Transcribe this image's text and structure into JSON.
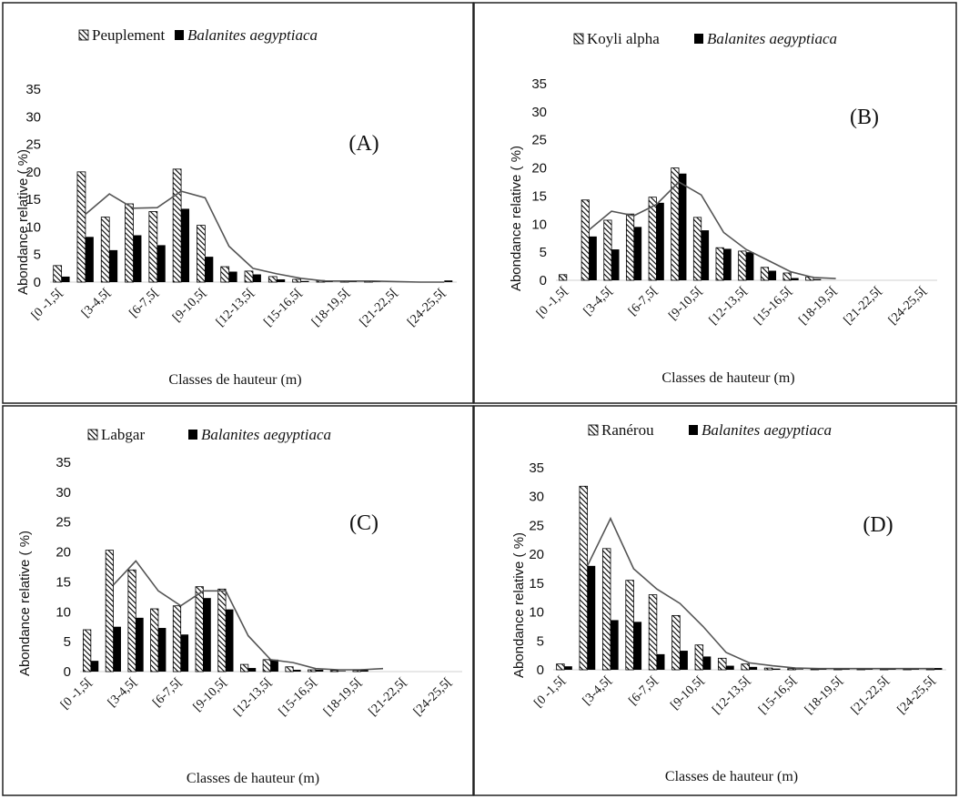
{
  "figure": {
    "colors": {
      "bar_black": "#000000",
      "hatch": "#000000",
      "line": "#555555",
      "axis": "#d9d9d9",
      "border": "#222222"
    }
  },
  "chart_data": [
    {
      "type": "bar",
      "panel_label": "(A)",
      "legend": {
        "placement": "top",
        "entries": [
          "Peuplement",
          "Balanites aegyptiaca"
        ],
        "italic": [
          false,
          true
        ]
      },
      "xlabel": "Classes de hauteur (m)",
      "ylabel": "Abondance relative ( %)",
      "ylim": [
        0,
        35
      ],
      "yticks": [
        0,
        5,
        10,
        15,
        20,
        25,
        30,
        35
      ],
      "categories": [
        "[0 -1,5[",
        "[1,5-3[",
        "[3-4,5[",
        "[4,5-6[",
        "[6-7,5[",
        "[7,5-9[",
        "[9-10,5[",
        "[10,5-12[",
        "[12-13,5[",
        "[13,5-15[",
        "[15-16,5[",
        "[16,5-18[",
        "[18-19,5[",
        "[19,5-21[",
        "[21-22,5[",
        "[22,5-24[",
        "[24-25,5["
      ],
      "tick_labels": [
        "[0 -1,5[",
        "",
        "[3-4,5[",
        "",
        "[6-7,5[",
        "",
        "[9-10,5[",
        "",
        "[12-13,5[",
        "",
        "[15-16,5[",
        "",
        "[18-19,5[",
        "",
        "[21-22,5[",
        "",
        "[24-25,5["
      ],
      "series": [
        {
          "name": "Peuplement",
          "style": "hatched",
          "values": [
            3,
            20,
            11.8,
            14.2,
            12.8,
            20.5,
            10.3,
            2.8,
            2,
            1,
            0.5,
            0.3,
            0.2,
            0.2,
            0,
            0,
            0
          ]
        },
        {
          "name": "Balanites aegyptiaca",
          "style": "solid",
          "values": [
            1,
            8.2,
            5.8,
            8.5,
            6.7,
            13.3,
            4.6,
            1.9,
            1.4,
            0.5,
            0.2,
            0.1,
            0.2,
            0.2,
            0,
            0,
            0.3
          ]
        }
      ],
      "trend": {
        "values": [
          null,
          12.3,
          16,
          13.4,
          13.5,
          16.5,
          15.3,
          6.5,
          2.5,
          1.5,
          0.7,
          0.2,
          0.2,
          0.2,
          0.1,
          0,
          0
        ]
      },
      "grid": false
    },
    {
      "type": "bar",
      "panel_label": "(B)",
      "legend": {
        "placement": "top-right",
        "entries": [
          "Koyli alpha",
          "Balanites aegyptiaca"
        ],
        "italic": [
          false,
          true
        ]
      },
      "xlabel": "Classes de hauteur (m)",
      "ylabel": "Abondance relative ( %)",
      "ylim": [
        0,
        35
      ],
      "yticks": [
        0,
        5,
        10,
        15,
        20,
        25,
        30,
        35
      ],
      "categories": [
        "[0 -1,5[",
        "[1,5-3[",
        "[3-4,5[",
        "[4,5-6[",
        "[6-7,5[",
        "[7,5-9[",
        "[9-10,5[",
        "[10,5-12[",
        "[12-13,5[",
        "[13,5-15[",
        "[15-16,5[",
        "[16,5-18[",
        "[18-19,5[",
        "[19,5-21[",
        "[21-22,5[",
        "[22,5-24[",
        "[24-25,5["
      ],
      "tick_labels": [
        "[0 -1,5[",
        "",
        "[3-4,5[",
        "",
        "[6-7,5[",
        "",
        "[9-10,5[",
        "",
        "[12-13,5[",
        "",
        "[15-16,5[",
        "",
        "[18-19,5[",
        "",
        "[21-22,5[",
        "",
        "[24-25,5["
      ],
      "series": [
        {
          "name": "Koyli alpha",
          "style": "hatched",
          "values": [
            1,
            14.3,
            10.7,
            11.8,
            14.8,
            20,
            11.2,
            5.8,
            5.2,
            2.3,
            1.3,
            0.6,
            0,
            0,
            0,
            0,
            0
          ]
        },
        {
          "name": "Balanites aegyptiaca",
          "style": "solid",
          "values": [
            0,
            7.8,
            5.5,
            9.5,
            13.8,
            19,
            8.9,
            5.6,
            5,
            1.7,
            0.4,
            0.2,
            0,
            0,
            0,
            0,
            0
          ]
        }
      ],
      "trend": {
        "values": [
          null,
          9,
          12.3,
          11.5,
          13.5,
          17.5,
          15.2,
          8.5,
          5.5,
          3.5,
          1.5,
          0.5,
          0.3,
          null,
          null,
          null,
          null
        ]
      },
      "grid": false
    },
    {
      "type": "bar",
      "panel_label": "(C)",
      "legend": {
        "placement": "top",
        "entries": [
          "Labgar",
          "Balanites aegyptiaca"
        ],
        "italic": [
          false,
          true
        ]
      },
      "xlabel": "Classes de hauteur (m)",
      "ylabel": "Abondance relative ( %)",
      "ylim": [
        0,
        35
      ],
      "yticks": [
        0,
        5,
        10,
        15,
        20,
        25,
        30,
        35
      ],
      "categories": [
        "[0 -1,5[",
        "[1,5-3[",
        "[3-4,5[",
        "[4,5-6[",
        "[6-7,5[",
        "[7,5-9[",
        "[9-10,5[",
        "[10,5-12[",
        "[12-13,5[",
        "[13,5-15[",
        "[15-16,5[",
        "[16,5-18[",
        "[18-19,5[",
        "[19,5-21[",
        "[21-22,5[",
        "[22,5-24[",
        "[24-25,5["
      ],
      "tick_labels": [
        "[0 -1,5[",
        "",
        "[3-4,5[",
        "",
        "[6-7,5[",
        "",
        "[9-10,5[",
        "",
        "[12-13,5[",
        "",
        "[15-16,5[",
        "",
        "[18-19,5[",
        "",
        "[21-22,5[",
        "",
        "[24-25,5["
      ],
      "series": [
        {
          "name": "Labgar",
          "style": "hatched",
          "values": [
            7,
            20.3,
            17,
            10.5,
            11,
            14.2,
            13.8,
            1.2,
            2,
            0.8,
            0.3,
            0.2,
            0.2,
            0,
            0,
            0,
            0
          ]
        },
        {
          "name": "Balanites aegyptiaca",
          "style": "solid",
          "values": [
            1.8,
            7.5,
            9,
            7.3,
            6.2,
            12.3,
            10.4,
            0.6,
            2,
            0.3,
            0.3,
            0.1,
            0.4,
            0,
            0,
            0,
            0
          ]
        }
      ],
      "trend": {
        "values": [
          null,
          14.5,
          18.5,
          13.5,
          11,
          13.5,
          13.5,
          6,
          2,
          1.5,
          0.5,
          0.3,
          0.3,
          0.5,
          null,
          null,
          null
        ]
      },
      "grid": false
    },
    {
      "type": "bar",
      "panel_label": "(D)",
      "legend": {
        "placement": "top",
        "entries": [
          "Ranérou",
          "Balanites aegyptiaca"
        ],
        "italic": [
          false,
          true
        ]
      },
      "xlabel": "Classes de hauteur (m)",
      "ylabel": "Abondance relative ( %)",
      "ylim": [
        0,
        35
      ],
      "yticks": [
        0,
        5,
        10,
        15,
        20,
        25,
        30,
        35
      ],
      "categories": [
        "[0 -1,5[",
        "[1,5-3[",
        "[3-4,5[",
        "[4,5-6[",
        "[6-7,5[",
        "[7,5-9[",
        "[9-10,5[",
        "[10,5-12[",
        "[12-13,5[",
        "[13,5-15[",
        "[15-16,5[",
        "[16,5-18[",
        "[18-19,5[",
        "[19,5-21[",
        "[21-22,5[",
        "[22,5-24[",
        "[24-25,5["
      ],
      "tick_labels": [
        "[0 -1,5[",
        "",
        "[3-4,5[",
        "",
        "[6-7,5[",
        "",
        "[9-10,5[",
        "",
        "[12-13,5[",
        "",
        "[15-16,5[",
        "",
        "[18-19,5[",
        "",
        "[21-22,5[",
        "",
        "[24-25,5["
      ],
      "series": [
        {
          "name": "Ranérou",
          "style": "hatched",
          "values": [
            1,
            31.8,
            21,
            15.5,
            13,
            9.4,
            4.3,
            2,
            1,
            0.3,
            0.2,
            0.1,
            0.1,
            0.1,
            0.1,
            0.1,
            0.1
          ]
        },
        {
          "name": "Balanites aegyptiaca",
          "style": "solid",
          "values": [
            0.6,
            18,
            8.6,
            8.3,
            2.7,
            3.3,
            2.3,
            0.7,
            0.5,
            0.2,
            0.1,
            0.1,
            0.1,
            0.1,
            0.1,
            0.1,
            0.3
          ]
        }
      ],
      "trend": {
        "values": [
          null,
          18,
          26.2,
          17.5,
          14,
          11.5,
          7.5,
          3,
          1.2,
          0.7,
          0.3,
          0.2,
          0.2,
          0.2,
          0.2,
          0.2,
          0.2
        ]
      },
      "grid": false
    }
  ]
}
